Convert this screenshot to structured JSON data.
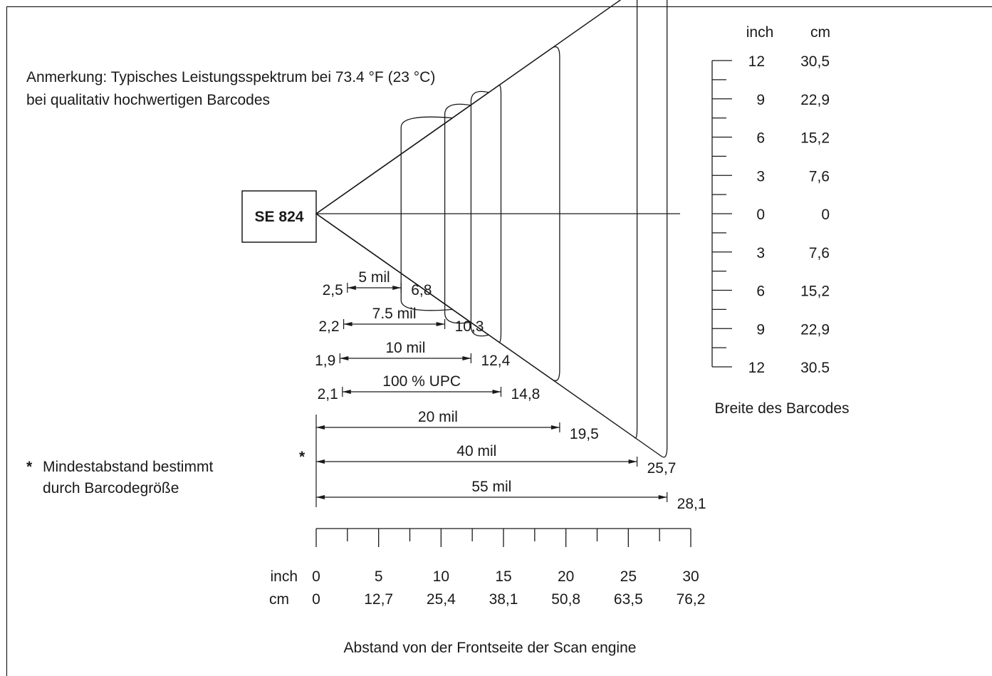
{
  "note": {
    "line1": "Anmerkung: Typisches Leistungsspektrum bei 73.4 °F (23 °C)",
    "line2": "bei qualitativ hochwertigen Barcodes"
  },
  "engine_label": "SE 824",
  "footnote": {
    "star": "*",
    "line1": "Mindestabstand bestimmt",
    "line2": "durch Barcodegröße"
  },
  "right_scale": {
    "header_inch": "inch",
    "header_cm": "cm",
    "rows": [
      {
        "inch": "12",
        "cm": "30,5"
      },
      {
        "inch": "9",
        "cm": "22,9"
      },
      {
        "inch": "6",
        "cm": "15,2"
      },
      {
        "inch": "3",
        "cm": "7,6"
      },
      {
        "inch": "0",
        "cm": "0"
      },
      {
        "inch": "3",
        "cm": "7,6"
      },
      {
        "inch": "6",
        "cm": "15,2"
      },
      {
        "inch": "9",
        "cm": "22,9"
      },
      {
        "inch": "12",
        "cm": "30.5"
      }
    ],
    "caption": "Breite des Barcodes"
  },
  "bottom_scale": {
    "unit_inch": "inch",
    "unit_cm": "cm",
    "inch_labels": [
      "0",
      "5",
      "10",
      "15",
      "20",
      "25",
      "30"
    ],
    "cm_labels": [
      "0",
      "12,7",
      "25,4",
      "38,1",
      "50,8",
      "63,5",
      "76,2"
    ],
    "caption": "Abstand von der Frontseite der Scan engine"
  },
  "ranges": [
    {
      "label": "5 mil",
      "min": 2.5,
      "max": 6.8,
      "min_text": "2,5",
      "max_text": "6,8",
      "half_width_in": 7.5
    },
    {
      "label": "7.5 mil",
      "min": 2.2,
      "max": 10.3,
      "min_text": "2,2",
      "max_text": "10,3",
      "half_width_in": 8.5
    },
    {
      "label": "10 mil",
      "min": 1.9,
      "max": 12.4,
      "min_text": "1,9",
      "max_text": "12,4",
      "half_width_in": 9.5
    },
    {
      "label": "100 % UPC",
      "min": 2.1,
      "max": 14.8,
      "min_text": "2,1",
      "max_text": "14,8",
      "half_width_in": 10.0
    },
    {
      "label": "20 mil",
      "min": 0,
      "max": 19.5,
      "min_text": "",
      "max_text": "19,5",
      "half_width_in": 13.0
    },
    {
      "label": "40 mil",
      "min": 0,
      "max": 25.7,
      "min_text": "",
      "max_text": "25,7",
      "half_width_in": 17.5,
      "star": true
    },
    {
      "label": "55 mil",
      "min": 0,
      "max": 28.1,
      "min_text": "",
      "max_text": "28,1",
      "half_width_in": 19.0
    }
  ]
}
